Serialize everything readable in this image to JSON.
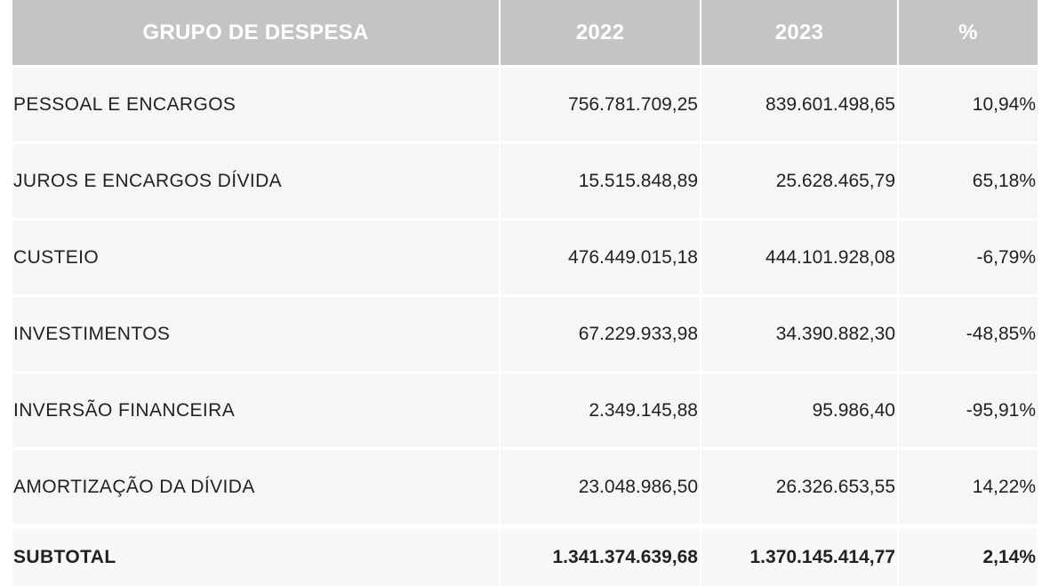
{
  "table": {
    "headers": [
      "GRUPO DE DESPESA",
      "2022",
      "2023",
      "%"
    ],
    "rows": [
      {
        "group": "PESSOAL E ENCARGOS",
        "v2022": "756.781.709,25",
        "v2023": "839.601.498,65",
        "pct": "10,94%"
      },
      {
        "group": "JUROS E ENCARGOS DÍVIDA",
        "v2022": "15.515.848,89",
        "v2023": "25.628.465,79",
        "pct": "65,18%"
      },
      {
        "group": "CUSTEIO",
        "v2022": "476.449.015,18",
        "v2023": "444.101.928,08",
        "pct": "-6,79%"
      },
      {
        "group": "INVESTIMENTOS",
        "v2022": "67.229.933,98",
        "v2023": "34.390.882,30",
        "pct": "-48,85%"
      },
      {
        "group": "INVERSÃO FINANCEIRA",
        "v2022": "2.349.145,88",
        "v2023": "95.986,40",
        "pct": "-95,91%"
      },
      {
        "group": "AMORTIZAÇÃO DA DÍVIDA",
        "v2022": "23.048.986,50",
        "v2023": "26.326.653,55",
        "pct": "14,22%"
      }
    ],
    "subtotal": {
      "group": "SUBTOTAL",
      "v2022": "1.341.374.639,68",
      "v2023": "1.370.145.414,77",
      "pct": "2,14%"
    }
  }
}
